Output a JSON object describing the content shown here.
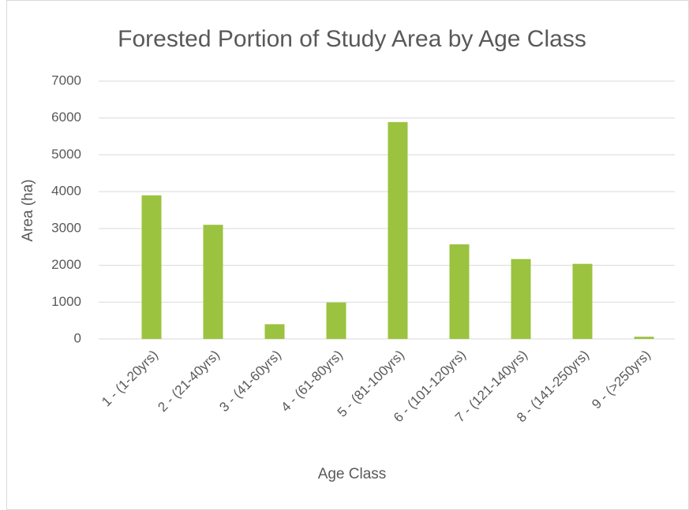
{
  "chart_data": {
    "type": "bar",
    "title": "Forested Portion of Study Area by Age Class",
    "x_label": "Age Class",
    "y_label": "Area (ha)",
    "categories": [
      "1 - (1-20yrs)",
      "2 - (21-40yrs)",
      "3 - (41-60yrs)",
      "4 - (61-80yrs)",
      "5 - (81-100yrs)",
      "6 - (101-120yrs)",
      "7 - (121-140yrs)",
      "8 - (141-250yrs)",
      "9 - (>250yrs)"
    ],
    "values": [
      3900,
      3100,
      400,
      990,
      5890,
      2570,
      2170,
      2040,
      60
    ],
    "color": "#9bc33f",
    "ylim": [
      0,
      7000
    ],
    "yticks": [
      0,
      1000,
      2000,
      3000,
      4000,
      5000,
      6000,
      7000
    ],
    "grid": true
  }
}
